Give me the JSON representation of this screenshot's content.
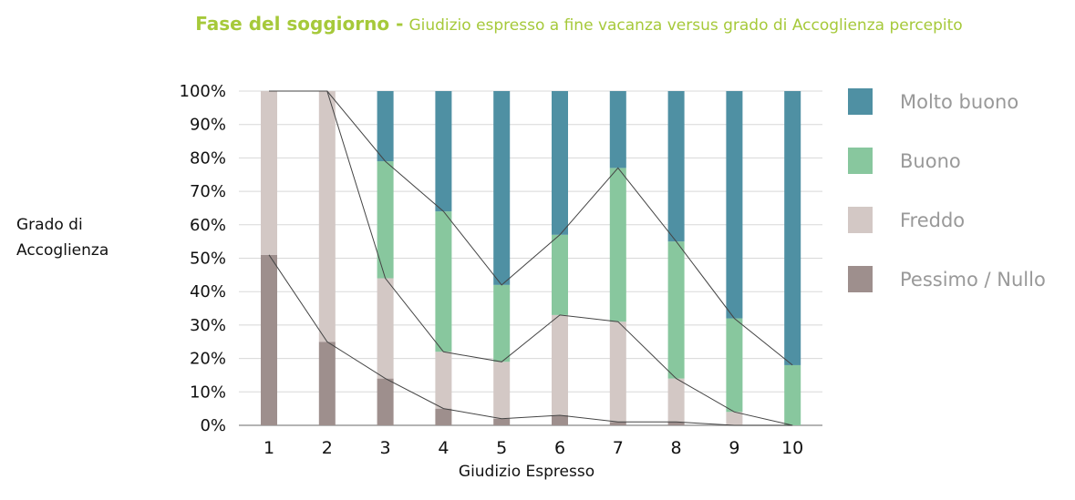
{
  "header": {
    "title_bold": "Fase del soggiorno -",
    "title_rest": "Giudizio espresso a fine vacanza versus grado di Accoglienza percepito"
  },
  "chart_data": {
    "type": "bar",
    "stacked": true,
    "title": "Fase del soggiorno - Giudizio espresso a fine vacanza versus grado di Accoglienza percepito",
    "xlabel": "Giudizio Espresso",
    "ylabel_lines": [
      "Grado di",
      "Accoglienza"
    ],
    "ylim": [
      0,
      100
    ],
    "y_ticks": [
      "0%",
      "10%",
      "20%",
      "30%",
      "40%",
      "50%",
      "60%",
      "70%",
      "80%",
      "90%",
      "100%"
    ],
    "categories": [
      "1",
      "2",
      "3",
      "4",
      "5",
      "6",
      "7",
      "8",
      "9",
      "10"
    ],
    "series": [
      {
        "name": "Pessimo / Nullo",
        "color": "#9e8f8d",
        "values": [
          51,
          25,
          14,
          5,
          2,
          3,
          1,
          1,
          0,
          0
        ]
      },
      {
        "name": "Freddo",
        "color": "#d3c8c5",
        "values": [
          49,
          75,
          30,
          17,
          17,
          30,
          30,
          13,
          4,
          0
        ]
      },
      {
        "name": "Buono",
        "color": "#88c79e",
        "values": [
          0,
          0,
          35,
          42,
          23,
          24,
          46,
          41,
          28,
          18
        ]
      },
      {
        "name": "Molto buono",
        "color": "#4f90a3",
        "values": [
          0,
          0,
          21,
          36,
          58,
          43,
          23,
          45,
          68,
          82
        ]
      }
    ],
    "legend_order": [
      "Molto buono",
      "Buono",
      "Freddo",
      "Pessimo / Nullo"
    ],
    "legend_position": "right",
    "grid": true,
    "series_lines": true
  }
}
